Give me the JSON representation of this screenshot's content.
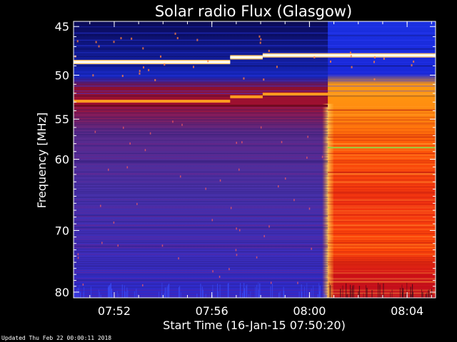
{
  "chart_data": {
    "type": "heatmap",
    "title": "Solar radio Flux (Glasgow)",
    "ylabel": "Frequency [MHz]",
    "xlabel": "Start Time (16-Jan-15 07:50:20)",
    "y_scale": "log",
    "y_reversed": true,
    "ylim": [
      44.5,
      81
    ],
    "xlim": [
      "07:50:20",
      "08:05:10"
    ],
    "y_ticks": [
      45,
      50,
      55,
      60,
      70,
      80
    ],
    "x_ticks": [
      "07:52",
      "07:56",
      "08:00",
      "08:04"
    ],
    "burst_onset": "08:00:45",
    "bright_lanes_mhz": [
      48.3,
      52.6,
      58.5
    ],
    "colormap": [
      "#000000",
      "#101070",
      "#1a2ad0",
      "#4030c8",
      "#6a2490",
      "#a01040",
      "#d01010",
      "#ff4a00",
      "#ff9a10",
      "#ffe080",
      "#ffffff"
    ]
  },
  "footer": {
    "updated": "Updated Thu Feb 22 00:00:11 2018"
  }
}
